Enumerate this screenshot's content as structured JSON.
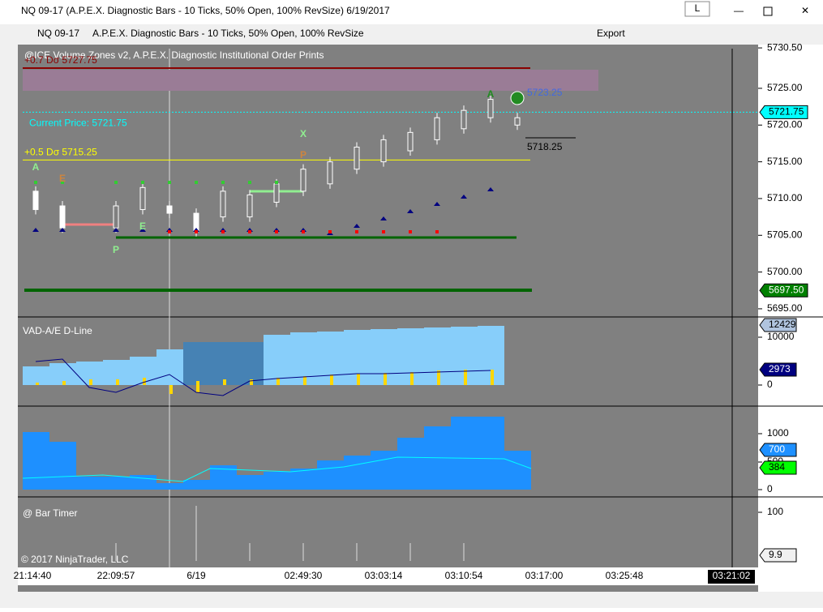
{
  "window": {
    "title": "NQ 09-17 (A.P.E.X. Diagnostic Bars - 10 Ticks, 50% Open, 100% RevSize)  6/19/2017",
    "button": "L"
  },
  "toolbar": {
    "instrument": "NQ 09-17",
    "bar_type": "A.P.E.X. Diagnostic Bars - 10 Ticks, 50% Open, 100% RevSize",
    "export": "Export"
  },
  "price_panel": {
    "label": "@ICE Volume Zones v2, A.P.E.X. Diagnostic Institutional Order Prints",
    "ylim": [
      5694,
      5730.4
    ],
    "ticks": [
      {
        "value": 5695,
        "label": "5695.00"
      },
      {
        "value": 5700,
        "label": "5700.00"
      },
      {
        "value": 5705,
        "label": "5705.00"
      },
      {
        "value": 5710,
        "label": "5710.00"
      },
      {
        "value": 5715,
        "label": "5715.00"
      },
      {
        "value": 5720,
        "label": "5720.00"
      },
      {
        "value": 5725,
        "label": "5725.00"
      },
      {
        "value": 5730.5,
        "label": "5730.50"
      }
    ],
    "levels": [
      {
        "label": "+0.7 Dσ 5727.75",
        "value": 5727.75
      },
      {
        "label": "Current Price: 5721.75",
        "value": 5721.75
      },
      {
        "label": "+0.5 Dσ 5715.25",
        "value": 5715.25
      }
    ],
    "flags": [
      {
        "label": "5721.75",
        "value": 5721.75
      },
      {
        "label": "5697.50",
        "value": 5697.5
      }
    ],
    "markers": [
      "A",
      "E",
      "P",
      "E",
      "X",
      "P",
      "A"
    ],
    "projections": [
      "5723.25",
      "5718.25"
    ],
    "bars": [
      [
        5708.5,
        5711
      ],
      [
        5706,
        5709
      ],
      null,
      [
        5706,
        5709
      ],
      [
        5708.5,
        5711.5
      ],
      [
        5708,
        5709
      ],
      [
        5705.5,
        5708
      ],
      [
        5707.5,
        5711
      ],
      [
        5707.5,
        5710.5
      ],
      [
        5709.5,
        5712
      ],
      [
        5711,
        5714
      ],
      [
        5712,
        5715
      ],
      [
        5714,
        5717
      ],
      [
        5715,
        5718
      ],
      [
        5716.5,
        5719
      ],
      [
        5718,
        5721
      ],
      [
        5719.5,
        5722
      ],
      [
        5721,
        5723.5
      ],
      [
        5720,
        5721
      ]
    ]
  },
  "vad_panel": {
    "label": "VAD-A/E D-Line",
    "ticks": [
      "10000",
      "0"
    ],
    "flags": [
      "12429",
      "2973"
    ]
  },
  "volume_panel": {
    "ticks": [
      "1000",
      "500",
      "0"
    ],
    "flags": [
      "700",
      "384"
    ]
  },
  "timer_panel": {
    "label": "@ Bar Timer",
    "ticks": [
      "100"
    ],
    "flag": "9.9",
    "copyright": "© 2017 NinjaTrader, LLC"
  },
  "time_axis": {
    "labels": [
      "21:14:40",
      "22:09:57",
      "6/19",
      "02:49:30",
      "03:03:14",
      "03:10:54",
      "03:17:00",
      "03:25:48"
    ],
    "current": "03:21:02"
  }
}
